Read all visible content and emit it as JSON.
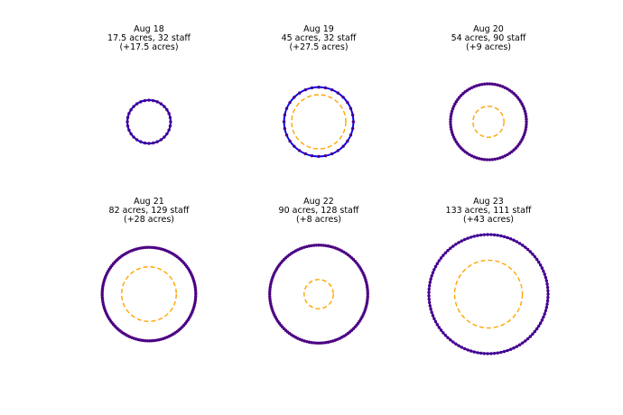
{
  "chart_data": {
    "type": "scatter",
    "description_encoding": "outer ring radius proportional to sqrt(acres); dots on ring = staff; dashed inner ring = new acres",
    "colors": {
      "ring": "#0000ff",
      "dot": "#4b0082",
      "growth": "#ffa500"
    },
    "panels": [
      {
        "date": "Aug 18",
        "summary": "17.5 acres, 32 staff",
        "delta": "(+17.5 acres)",
        "acres": 17.5,
        "staff": 32,
        "new_acres": 17.5
      },
      {
        "date": "Aug 19",
        "summary": "45 acres, 32 staff",
        "delta": "(+27.5 acres)",
        "acres": 45,
        "staff": 32,
        "new_acres": 27.5
      },
      {
        "date": "Aug 20",
        "summary": "54 acres, 90 staff",
        "delta": "(+9 acres)",
        "acres": 54,
        "staff": 90,
        "new_acres": 9
      },
      {
        "date": "Aug 21",
        "summary": "82 acres, 129 staff",
        "delta": "(+28 acres)",
        "acres": 82,
        "staff": 129,
        "new_acres": 28
      },
      {
        "date": "Aug 22",
        "summary": "90 acres, 128 staff",
        "delta": "(+8 acres)",
        "acres": 90,
        "staff": 128,
        "new_acres": 8
      },
      {
        "date": "Aug 23",
        "summary": "133 acres, 111 staff",
        "delta": "(+43 acres)",
        "acres": 133,
        "staff": 111,
        "new_acres": 43
      }
    ]
  }
}
